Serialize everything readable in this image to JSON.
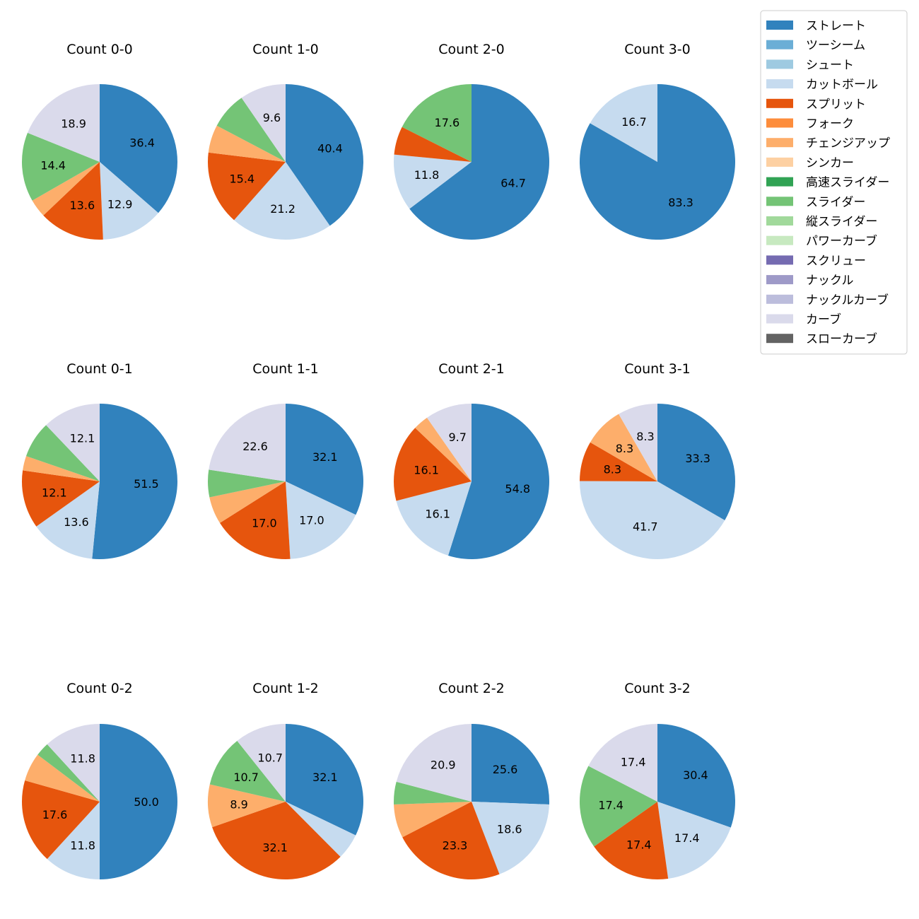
{
  "colors": {
    "ストレート": "#3182bd",
    "ツーシーム": "#6baed6",
    "シュート": "#9ecae1",
    "カットボール": "#c6dbef",
    "スプリット": "#e6550d",
    "フォーク": "#fd8d3c",
    "チェンジアップ": "#fdae6b",
    "シンカー": "#fdd0a2",
    "高速スライダー": "#31a354",
    "スライダー": "#74c476",
    "縦スライダー": "#a1d99b",
    "パワーカーブ": "#c7e9c0",
    "スクリュー": "#756bb1",
    "ナックル": "#9e9ac8",
    "ナックルカーブ": "#bcbddc",
    "カーブ": "#dadaeb",
    "スローカーブ": "#636363"
  },
  "legend": {
    "placement": "top-right",
    "entries": [
      "ストレート",
      "ツーシーム",
      "シュート",
      "カットボール",
      "スプリット",
      "フォーク",
      "チェンジアップ",
      "シンカー",
      "高速スライダー",
      "スライダー",
      "縦スライダー",
      "パワーカーブ",
      "スクリュー",
      "ナックル",
      "ナックルカーブ",
      "カーブ",
      "スローカーブ"
    ]
  },
  "chart_data": [
    {
      "type": "pie",
      "title": "Count 0-0",
      "slices": [
        {
          "label": "ストレート",
          "value": 36.4,
          "text": "36.4"
        },
        {
          "label": "カットボール",
          "value": 12.9,
          "text": "12.9"
        },
        {
          "label": "スプリット",
          "value": 13.6,
          "text": "13.6"
        },
        {
          "label": "チェンジアップ",
          "value": 3.8,
          "text": ""
        },
        {
          "label": "スライダー",
          "value": 14.4,
          "text": "14.4"
        },
        {
          "label": "カーブ",
          "value": 18.9,
          "text": "18.9"
        }
      ]
    },
    {
      "type": "pie",
      "title": "Count 1-0",
      "slices": [
        {
          "label": "ストレート",
          "value": 40.4,
          "text": "40.4"
        },
        {
          "label": "カットボール",
          "value": 21.2,
          "text": "21.2"
        },
        {
          "label": "スプリット",
          "value": 15.4,
          "text": "15.4"
        },
        {
          "label": "チェンジアップ",
          "value": 5.8,
          "text": ""
        },
        {
          "label": "スライダー",
          "value": 7.7,
          "text": ""
        },
        {
          "label": "カーブ",
          "value": 9.6,
          "text": "9.6"
        }
      ]
    },
    {
      "type": "pie",
      "title": "Count 2-0",
      "slices": [
        {
          "label": "ストレート",
          "value": 64.7,
          "text": "64.7"
        },
        {
          "label": "カットボール",
          "value": 11.8,
          "text": "11.8"
        },
        {
          "label": "スプリット",
          "value": 5.9,
          "text": ""
        },
        {
          "label": "スライダー",
          "value": 17.6,
          "text": "17.6"
        }
      ]
    },
    {
      "type": "pie",
      "title": "Count 3-0",
      "slices": [
        {
          "label": "ストレート",
          "value": 83.3,
          "text": "83.3"
        },
        {
          "label": "カットボール",
          "value": 16.7,
          "text": "16.7"
        }
      ]
    },
    {
      "type": "pie",
      "title": "Count 0-1",
      "slices": [
        {
          "label": "ストレート",
          "value": 51.5,
          "text": "51.5"
        },
        {
          "label": "カットボール",
          "value": 13.6,
          "text": "13.6"
        },
        {
          "label": "スプリット",
          "value": 12.1,
          "text": "12.1"
        },
        {
          "label": "チェンジアップ",
          "value": 3.0,
          "text": ""
        },
        {
          "label": "スライダー",
          "value": 7.6,
          "text": ""
        },
        {
          "label": "カーブ",
          "value": 12.1,
          "text": "12.1"
        }
      ]
    },
    {
      "type": "pie",
      "title": "Count 1-1",
      "slices": [
        {
          "label": "ストレート",
          "value": 32.1,
          "text": "32.1"
        },
        {
          "label": "カットボール",
          "value": 17.0,
          "text": "17.0"
        },
        {
          "label": "スプリット",
          "value": 17.0,
          "text": "17.0"
        },
        {
          "label": "チェンジアップ",
          "value": 5.7,
          "text": ""
        },
        {
          "label": "スライダー",
          "value": 5.7,
          "text": ""
        },
        {
          "label": "カーブ",
          "value": 22.6,
          "text": "22.6"
        }
      ]
    },
    {
      "type": "pie",
      "title": "Count 2-1",
      "slices": [
        {
          "label": "ストレート",
          "value": 54.8,
          "text": "54.8"
        },
        {
          "label": "カットボール",
          "value": 16.1,
          "text": "16.1"
        },
        {
          "label": "スプリット",
          "value": 16.1,
          "text": "16.1"
        },
        {
          "label": "チェンジアップ",
          "value": 3.2,
          "text": ""
        },
        {
          "label": "カーブ",
          "value": 9.7,
          "text": "9.7"
        }
      ]
    },
    {
      "type": "pie",
      "title": "Count 3-1",
      "slices": [
        {
          "label": "ストレート",
          "value": 33.3,
          "text": "33.3"
        },
        {
          "label": "カットボール",
          "value": 41.7,
          "text": "41.7"
        },
        {
          "label": "スプリット",
          "value": 8.3,
          "text": "8.3"
        },
        {
          "label": "チェンジアップ",
          "value": 8.3,
          "text": "8.3"
        },
        {
          "label": "カーブ",
          "value": 8.3,
          "text": "8.3"
        }
      ]
    },
    {
      "type": "pie",
      "title": "Count 0-2",
      "slices": [
        {
          "label": "ストレート",
          "value": 50.0,
          "text": "50.0"
        },
        {
          "label": "カットボール",
          "value": 11.8,
          "text": "11.8"
        },
        {
          "label": "スプリット",
          "value": 17.6,
          "text": "17.6"
        },
        {
          "label": "チェンジアップ",
          "value": 5.9,
          "text": ""
        },
        {
          "label": "スライダー",
          "value": 2.9,
          "text": ""
        },
        {
          "label": "カーブ",
          "value": 11.8,
          "text": "11.8"
        }
      ]
    },
    {
      "type": "pie",
      "title": "Count 1-2",
      "slices": [
        {
          "label": "ストレート",
          "value": 32.1,
          "text": "32.1"
        },
        {
          "label": "カットボール",
          "value": 5.4,
          "text": ""
        },
        {
          "label": "スプリット",
          "value": 32.1,
          "text": "32.1"
        },
        {
          "label": "チェンジアップ",
          "value": 8.9,
          "text": "8.9"
        },
        {
          "label": "スライダー",
          "value": 10.7,
          "text": "10.7"
        },
        {
          "label": "カーブ",
          "value": 10.7,
          "text": "10.7"
        }
      ]
    },
    {
      "type": "pie",
      "title": "Count 2-2",
      "slices": [
        {
          "label": "ストレート",
          "value": 25.6,
          "text": "25.6"
        },
        {
          "label": "カットボール",
          "value": 18.6,
          "text": "18.6"
        },
        {
          "label": "スプリット",
          "value": 23.3,
          "text": "23.3"
        },
        {
          "label": "チェンジアップ",
          "value": 7.0,
          "text": ""
        },
        {
          "label": "スライダー",
          "value": 4.7,
          "text": ""
        },
        {
          "label": "カーブ",
          "value": 20.9,
          "text": "20.9"
        }
      ]
    },
    {
      "type": "pie",
      "title": "Count 3-2",
      "slices": [
        {
          "label": "ストレート",
          "value": 30.4,
          "text": "30.4"
        },
        {
          "label": "カットボール",
          "value": 17.4,
          "text": "17.4"
        },
        {
          "label": "スプリット",
          "value": 17.4,
          "text": "17.4"
        },
        {
          "label": "スライダー",
          "value": 17.4,
          "text": "17.4"
        },
        {
          "label": "カーブ",
          "value": 17.4,
          "text": "17.4"
        }
      ]
    }
  ]
}
